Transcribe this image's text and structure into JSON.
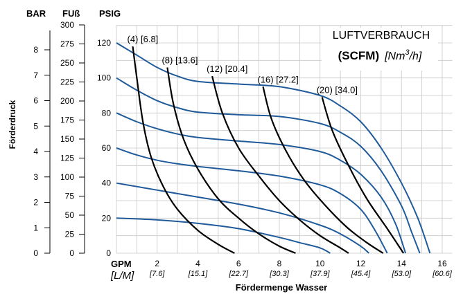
{
  "chart_data": {
    "type": "line",
    "axes_left": {
      "bar": {
        "label": "BAR",
        "ticks": [
          "0",
          "1",
          "2",
          "3",
          "4",
          "5",
          "6",
          "7",
          "8"
        ]
      },
      "fuss": {
        "label": "FUß",
        "ticks": [
          "0",
          "25",
          "50",
          "75",
          "100",
          "125",
          "150",
          "175",
          "200",
          "225",
          "250",
          "275",
          "300"
        ]
      },
      "psig": {
        "label": "PSIG",
        "ticks": [
          "0",
          "20",
          "40",
          "60",
          "80",
          "100",
          "120"
        ],
        "ylim": [
          0,
          130
        ]
      }
    },
    "ylabel": "Förderdruck",
    "x_axis": {
      "gpm_label": "GPM",
      "lpm_label": "[L/M]",
      "gpm_ticks": [
        "2",
        "4",
        "6",
        "8",
        "10",
        "12",
        "14",
        "16"
      ],
      "lpm_ticks": [
        "[7.6]",
        "[15.1]",
        "[22.7]",
        "[30.3]",
        "[37.9]",
        "[45.4]",
        "[53.0]",
        "[60.6]"
      ],
      "xlim": [
        0,
        16.5
      ],
      "xlabel": "Fördermenge Wasser"
    },
    "legend": {
      "line1": "LUFTVERBRAUCH",
      "scfm": "(SCFM)",
      "nm3h_prefix": "[Nm",
      "nm3h_sup": "3",
      "nm3h_suffix": "/h]"
    },
    "grid": true,
    "series_blue": [
      {
        "name": "120 PSIG",
        "points": [
          [
            0,
            120
          ],
          [
            1,
            113
          ],
          [
            2,
            106
          ],
          [
            3,
            101
          ],
          [
            4,
            98
          ],
          [
            6,
            96.5
          ],
          [
            8,
            95
          ],
          [
            10,
            90
          ],
          [
            11,
            84
          ],
          [
            12,
            75
          ],
          [
            13,
            60
          ],
          [
            14,
            40
          ],
          [
            14.8,
            20
          ],
          [
            15.4,
            0
          ]
        ]
      },
      {
        "name": "100 PSIG",
        "points": [
          [
            0,
            100
          ],
          [
            1,
            93
          ],
          [
            2,
            87
          ],
          [
            3,
            83
          ],
          [
            4,
            80.5
          ],
          [
            6,
            79
          ],
          [
            8,
            78
          ],
          [
            10,
            74
          ],
          [
            11,
            69
          ],
          [
            12,
            61
          ],
          [
            13,
            47
          ],
          [
            14,
            27
          ],
          [
            14.5,
            12
          ],
          [
            14.9,
            0
          ]
        ]
      },
      {
        "name": "80 PSIG",
        "points": [
          [
            0,
            80
          ],
          [
            1,
            75
          ],
          [
            2,
            71
          ],
          [
            3,
            68
          ],
          [
            4,
            66
          ],
          [
            6,
            64
          ],
          [
            8,
            62
          ],
          [
            10,
            58
          ],
          [
            11,
            53
          ],
          [
            12,
            45
          ],
          [
            13,
            32
          ],
          [
            13.7,
            17
          ],
          [
            14.2,
            0
          ]
        ]
      },
      {
        "name": "60 PSIG",
        "points": [
          [
            0,
            60
          ],
          [
            1,
            56
          ],
          [
            2,
            53
          ],
          [
            3,
            51
          ],
          [
            4,
            49.5
          ],
          [
            6,
            47
          ],
          [
            8,
            44
          ],
          [
            10,
            39
          ],
          [
            11,
            34
          ],
          [
            12,
            25
          ],
          [
            12.7,
            13
          ],
          [
            13.3,
            0
          ]
        ]
      },
      {
        "name": "40 PSIG",
        "points": [
          [
            0,
            40
          ],
          [
            1,
            38
          ],
          [
            2,
            36
          ],
          [
            4,
            32
          ],
          [
            6,
            28
          ],
          [
            8,
            23
          ],
          [
            10,
            16
          ],
          [
            11,
            11
          ],
          [
            12,
            4
          ],
          [
            12.4,
            0
          ]
        ]
      },
      {
        "name": "20 PSIG",
        "points": [
          [
            0,
            20
          ],
          [
            2,
            19
          ],
          [
            4,
            17
          ],
          [
            6,
            14
          ],
          [
            8,
            9
          ],
          [
            9,
            6
          ],
          [
            10,
            3
          ],
          [
            10.5,
            0
          ]
        ]
      }
    ],
    "series_black": [
      {
        "name": "(4) [6.8]",
        "points": [
          [
            0.8,
            118
          ],
          [
            1,
            100
          ],
          [
            1.3,
            75
          ],
          [
            1.7,
            55
          ],
          [
            2.3,
            38
          ],
          [
            3,
            25
          ],
          [
            4,
            13
          ],
          [
            5,
            5
          ],
          [
            5.8,
            0
          ]
        ]
      },
      {
        "name": "(8) [13.6]",
        "points": [
          [
            2.5,
            106
          ],
          [
            2.8,
            85
          ],
          [
            3.3,
            65
          ],
          [
            4,
            48
          ],
          [
            5,
            31
          ],
          [
            6,
            20
          ],
          [
            7,
            11
          ],
          [
            8,
            4
          ],
          [
            8.8,
            0
          ]
        ]
      },
      {
        "name": "(12) [20.4]",
        "points": [
          [
            4.7,
            101
          ],
          [
            5.2,
            80
          ],
          [
            6,
            60
          ],
          [
            7,
            44
          ],
          [
            8,
            30
          ],
          [
            9,
            19
          ],
          [
            10,
            10
          ],
          [
            11,
            3
          ],
          [
            11.4,
            0
          ]
        ]
      },
      {
        "name": "(16) [27.2]",
        "points": [
          [
            7.2,
            95
          ],
          [
            7.6,
            77
          ],
          [
            8.3,
            59
          ],
          [
            9.2,
            42
          ],
          [
            10.2,
            28
          ],
          [
            11.3,
            15
          ],
          [
            12.3,
            6
          ],
          [
            13.1,
            0
          ]
        ]
      },
      {
        "name": "(20) [34.0]",
        "points": [
          [
            10.1,
            89
          ],
          [
            10.6,
            70
          ],
          [
            11.4,
            50
          ],
          [
            12.3,
            31
          ],
          [
            13.3,
            14
          ],
          [
            14.1,
            0
          ]
        ]
      }
    ],
    "curve_labels": [
      "(4) [6.8]",
      "(8) [13.6]",
      "(12) [20.4]",
      "(16) [27.2]",
      "(20) [34.0]"
    ]
  }
}
